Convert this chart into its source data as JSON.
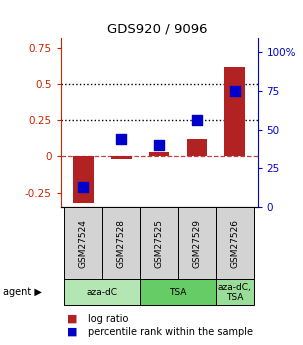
{
  "title": "GDS920 / 9096",
  "samples": [
    "GSM27524",
    "GSM27528",
    "GSM27525",
    "GSM27529",
    "GSM27526"
  ],
  "log_ratio": [
    -0.32,
    -0.02,
    0.03,
    0.12,
    0.62
  ],
  "percentile": [
    0.13,
    0.44,
    0.4,
    0.56,
    0.75
  ],
  "ylim_left": [
    -0.35,
    0.82
  ],
  "ylim_right": [
    0.0,
    1.093
  ],
  "yticks_left": [
    -0.25,
    0.0,
    0.25,
    0.5,
    0.75
  ],
  "ytick_labels_left": [
    "-0.25",
    "0",
    "0.25",
    "0.5",
    "0.75"
  ],
  "yticks_right": [
    0.0,
    0.25,
    0.5,
    0.75,
    1.0
  ],
  "ytick_labels_right": [
    "0",
    "25",
    "50",
    "75",
    "100%"
  ],
  "hlines_dotted": [
    0.25,
    0.5
  ],
  "hline_dashed": 0.0,
  "bar_color": "#b22222",
  "dot_color": "#0000cc",
  "agent_groups": [
    {
      "label": "aza-dC",
      "indices": [
        0,
        1
      ],
      "color": "#b3e6b3"
    },
    {
      "label": "TSA",
      "indices": [
        2,
        3
      ],
      "color": "#66cc66"
    },
    {
      "label": "aza-dC,\nTSA",
      "indices": [
        4
      ],
      "color": "#99dd99"
    }
  ],
  "bar_width": 0.55,
  "dot_size": 55,
  "background_color": "#ffffff",
  "plot_bg_color": "#ffffff",
  "agent_label": "agent ▶",
  "legend_log_ratio": "log ratio",
  "legend_percentile": "percentile rank within the sample",
  "tick_label_color_left": "#cc2200",
  "tick_label_color_right": "#0000cc"
}
